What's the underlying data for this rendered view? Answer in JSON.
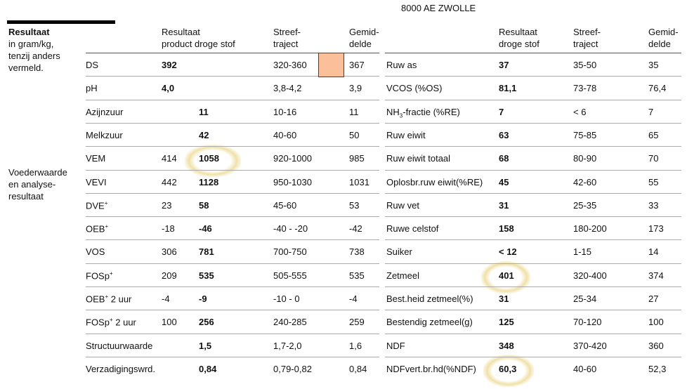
{
  "header": {
    "address_line": "8000 AE  ZWOLLE"
  },
  "side": {
    "title": "Resultaat",
    "subtitle": [
      "in gram/kg,",
      "tenzij anders",
      "vermeld."
    ],
    "section2": [
      "Voederwaarde",
      "en analyse-",
      "resultaat"
    ]
  },
  "left_headers": {
    "product": [
      "Resultaat",
      "product  droge stof"
    ],
    "streef": [
      "Streef-",
      "traject"
    ],
    "gem": [
      "Gemid-",
      "delde"
    ]
  },
  "right_headers": {
    "value": [
      "Resultaat",
      "droge stof"
    ],
    "streef": [
      "Streef-",
      "traject"
    ],
    "gem": [
      "Gemid-",
      "delde"
    ]
  },
  "indicator_color": "#fbbf9a",
  "left_rows": [
    {
      "label": "DS",
      "product": "392",
      "ds": "",
      "streef": "320-360",
      "gem": "367"
    },
    {
      "label": "pH",
      "product": "4,0",
      "ds": "",
      "streef": "3,8-4,2",
      "gem": "3,9"
    },
    {
      "label": "Azijnzuur",
      "product": "",
      "ds": "11",
      "streef": "10-16",
      "gem": "11"
    },
    {
      "label": "Melkzuur",
      "product": "",
      "ds": "42",
      "streef": "40-60",
      "gem": "50"
    },
    {
      "label": "VEM",
      "product": "414",
      "ds": "1058",
      "streef": "920-1000",
      "gem": "985"
    },
    {
      "label": "VEVI",
      "product": "442",
      "ds": "1128",
      "streef": "950-1030",
      "gem": "1031"
    },
    {
      "label": "DVE",
      "sup": "+",
      "product": "23",
      "ds": "58",
      "streef": "45-60",
      "gem": "53"
    },
    {
      "label": "OEB",
      "sup": "+",
      "product": "-18",
      "ds": "-46",
      "streef": "-40 - -20",
      "gem": "-42"
    },
    {
      "label": "VOS",
      "product": "306",
      "ds": "781",
      "streef": "700-750",
      "gem": "738"
    },
    {
      "label": "FOSp",
      "sup": "+",
      "product": "209",
      "ds": "535",
      "streef": "505-555",
      "gem": "535"
    },
    {
      "label": "OEB",
      "sup": "+",
      "after": " 2 uur",
      "product": "-4",
      "ds": "-9",
      "streef": "-10 - 0",
      "gem": "-4"
    },
    {
      "label": "FOSp",
      "sup": "+",
      "after": " 2 uur",
      "product": "100",
      "ds": "256",
      "streef": "240-285",
      "gem": "259"
    },
    {
      "label": "Structuurwaarde",
      "product": "",
      "ds": "1,5",
      "streef": "1,7-2,0",
      "gem": "1,6"
    },
    {
      "label": "Verzadigingswrd.",
      "product": "",
      "ds": "0,84",
      "streef": "0,79-0,82",
      "gem": "0,84"
    }
  ],
  "right_rows": [
    {
      "label": "Ruw as",
      "value": "37",
      "streef": "35-50",
      "gem": "35"
    },
    {
      "label": "VCOS (%OS)",
      "value": "81,1",
      "streef": "73-78",
      "gem": "76,4"
    },
    {
      "label": "NH",
      "sub": "3",
      "after": "-fractie (%RE)",
      "value": "7",
      "streef": "< 6",
      "gem": "7"
    },
    {
      "label": "Ruw eiwit",
      "value": "63",
      "streef": "75-85",
      "gem": "65"
    },
    {
      "label": "Ruw eiwit totaal",
      "value": "68",
      "streef": "80-90",
      "gem": "70"
    },
    {
      "label": "Oplosbr.ruw eiwit(%RE)",
      "value": "45",
      "streef": "42-60",
      "gem": "55"
    },
    {
      "label": "Ruw vet",
      "value": "31",
      "streef": "25-35",
      "gem": "33"
    },
    {
      "label": "Ruwe celstof",
      "value": "158",
      "streef": "180-200",
      "gem": "173"
    },
    {
      "label": "Suiker",
      "value": "< 12",
      "streef": "1-15",
      "gem": "14"
    },
    {
      "label": "Zetmeel",
      "value": "401",
      "streef": "320-400",
      "gem": "374"
    },
    {
      "label": "Best.heid zetmeel(%)",
      "value": "31",
      "streef": "25-34",
      "gem": "27"
    },
    {
      "label": "Bestendig zetmeel(g)",
      "value": "125",
      "streef": "70-120",
      "gem": "100"
    },
    {
      "label": "NDF",
      "value": "348",
      "streef": "370-420",
      "gem": "360"
    },
    {
      "label": "NDFvert.br.hd(%NDF)",
      "value": "60,3",
      "streef": "40-60",
      "gem": "52,3"
    }
  ]
}
